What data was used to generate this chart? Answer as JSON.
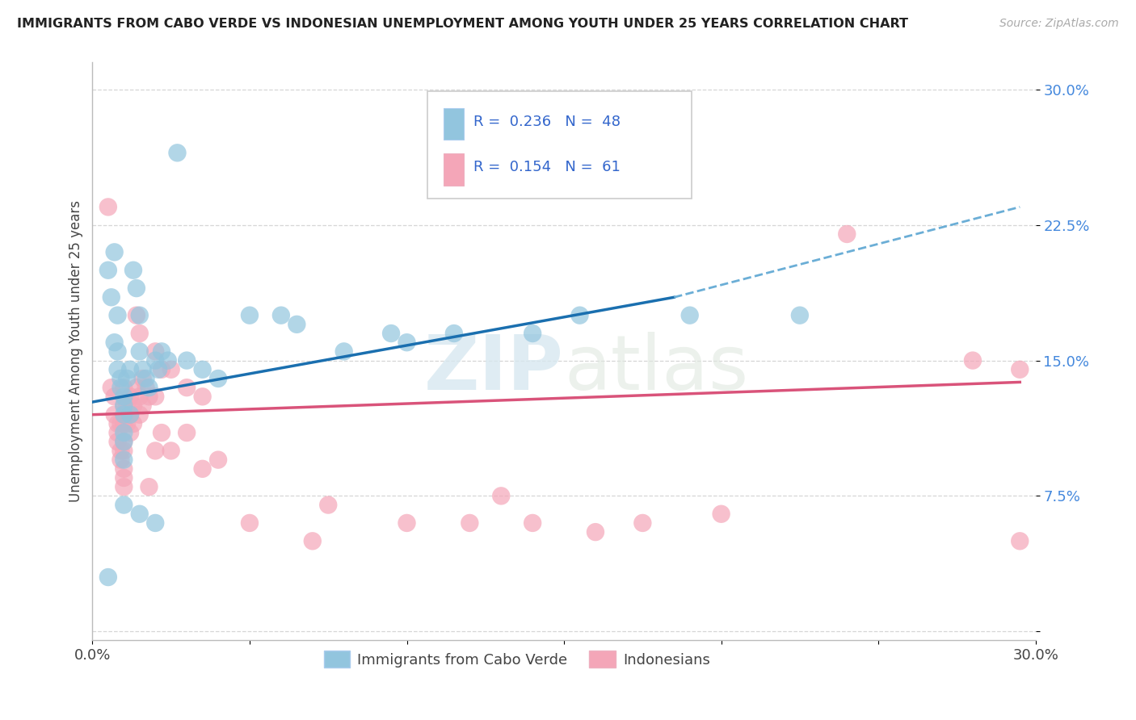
{
  "title": "IMMIGRANTS FROM CABO VERDE VS INDONESIAN UNEMPLOYMENT AMONG YOUTH UNDER 25 YEARS CORRELATION CHART",
  "source": "Source: ZipAtlas.com",
  "ylabel": "Unemployment Among Youth under 25 years",
  "xlim": [
    0.0,
    0.3
  ],
  "ylim": [
    -0.005,
    0.315
  ],
  "xticks": [
    0.0,
    0.05,
    0.1,
    0.15,
    0.2,
    0.25,
    0.3
  ],
  "xticklabels": [
    "0.0%",
    "",
    "",
    "",
    "",
    "",
    "30.0%"
  ],
  "ytick_positions": [
    0.0,
    0.075,
    0.15,
    0.225,
    0.3
  ],
  "yticklabels": [
    "",
    "7.5%",
    "15.0%",
    "22.5%",
    "30.0%"
  ],
  "legend1_label": "Immigrants from Cabo Verde",
  "legend2_label": "Indonesians",
  "R1": "0.236",
  "N1": "48",
  "R2": "0.154",
  "N2": "61",
  "blue_color": "#92c5de",
  "pink_color": "#f4a6b8",
  "blue_line_color": "#1a6faf",
  "pink_line_color": "#d9537a",
  "dashed_line_color": "#6baed6",
  "watermark_zip": "ZIP",
  "watermark_atlas": "atlas",
  "blue_scatter": [
    [
      0.005,
      0.2
    ],
    [
      0.006,
      0.185
    ],
    [
      0.007,
      0.16
    ],
    [
      0.007,
      0.21
    ],
    [
      0.008,
      0.175
    ],
    [
      0.008,
      0.155
    ],
    [
      0.008,
      0.145
    ],
    [
      0.009,
      0.14
    ],
    [
      0.009,
      0.135
    ],
    [
      0.01,
      0.13
    ],
    [
      0.01,
      0.125
    ],
    [
      0.01,
      0.12
    ],
    [
      0.01,
      0.11
    ],
    [
      0.01,
      0.105
    ],
    [
      0.01,
      0.095
    ],
    [
      0.011,
      0.14
    ],
    [
      0.012,
      0.145
    ],
    [
      0.012,
      0.12
    ],
    [
      0.013,
      0.2
    ],
    [
      0.014,
      0.19
    ],
    [
      0.015,
      0.175
    ],
    [
      0.015,
      0.155
    ],
    [
      0.016,
      0.145
    ],
    [
      0.017,
      0.14
    ],
    [
      0.018,
      0.135
    ],
    [
      0.02,
      0.15
    ],
    [
      0.021,
      0.145
    ],
    [
      0.022,
      0.155
    ],
    [
      0.024,
      0.15
    ],
    [
      0.027,
      0.265
    ],
    [
      0.03,
      0.15
    ],
    [
      0.035,
      0.145
    ],
    [
      0.04,
      0.14
    ],
    [
      0.05,
      0.175
    ],
    [
      0.06,
      0.175
    ],
    [
      0.065,
      0.17
    ],
    [
      0.08,
      0.155
    ],
    [
      0.095,
      0.165
    ],
    [
      0.1,
      0.16
    ],
    [
      0.115,
      0.165
    ],
    [
      0.14,
      0.165
    ],
    [
      0.155,
      0.175
    ],
    [
      0.19,
      0.175
    ],
    [
      0.225,
      0.175
    ],
    [
      0.005,
      0.03
    ],
    [
      0.01,
      0.07
    ],
    [
      0.015,
      0.065
    ],
    [
      0.02,
      0.06
    ]
  ],
  "pink_scatter": [
    [
      0.005,
      0.235
    ],
    [
      0.006,
      0.135
    ],
    [
      0.007,
      0.13
    ],
    [
      0.007,
      0.12
    ],
    [
      0.008,
      0.115
    ],
    [
      0.008,
      0.11
    ],
    [
      0.008,
      0.105
    ],
    [
      0.009,
      0.115
    ],
    [
      0.009,
      0.1
    ],
    [
      0.009,
      0.095
    ],
    [
      0.01,
      0.135
    ],
    [
      0.01,
      0.125
    ],
    [
      0.01,
      0.115
    ],
    [
      0.01,
      0.105
    ],
    [
      0.01,
      0.1
    ],
    [
      0.01,
      0.09
    ],
    [
      0.01,
      0.085
    ],
    [
      0.01,
      0.08
    ],
    [
      0.011,
      0.125
    ],
    [
      0.011,
      0.115
    ],
    [
      0.012,
      0.13
    ],
    [
      0.012,
      0.12
    ],
    [
      0.012,
      0.11
    ],
    [
      0.013,
      0.125
    ],
    [
      0.013,
      0.115
    ],
    [
      0.014,
      0.175
    ],
    [
      0.014,
      0.135
    ],
    [
      0.015,
      0.165
    ],
    [
      0.015,
      0.13
    ],
    [
      0.015,
      0.12
    ],
    [
      0.016,
      0.14
    ],
    [
      0.016,
      0.125
    ],
    [
      0.017,
      0.135
    ],
    [
      0.018,
      0.13
    ],
    [
      0.018,
      0.08
    ],
    [
      0.02,
      0.155
    ],
    [
      0.02,
      0.13
    ],
    [
      0.02,
      0.1
    ],
    [
      0.022,
      0.145
    ],
    [
      0.022,
      0.11
    ],
    [
      0.025,
      0.145
    ],
    [
      0.025,
      0.1
    ],
    [
      0.03,
      0.135
    ],
    [
      0.03,
      0.11
    ],
    [
      0.035,
      0.13
    ],
    [
      0.035,
      0.09
    ],
    [
      0.04,
      0.095
    ],
    [
      0.05,
      0.06
    ],
    [
      0.07,
      0.05
    ],
    [
      0.075,
      0.07
    ],
    [
      0.1,
      0.06
    ],
    [
      0.12,
      0.06
    ],
    [
      0.13,
      0.075
    ],
    [
      0.14,
      0.06
    ],
    [
      0.16,
      0.055
    ],
    [
      0.175,
      0.06
    ],
    [
      0.2,
      0.065
    ],
    [
      0.24,
      0.22
    ],
    [
      0.28,
      0.15
    ],
    [
      0.295,
      0.145
    ],
    [
      0.295,
      0.05
    ]
  ],
  "blue_line": {
    "x0": 0.0,
    "x1": 0.185,
    "y0": 0.127,
    "y1": 0.185
  },
  "blue_dashed_line": {
    "x0": 0.185,
    "x1": 0.295,
    "y0": 0.185,
    "y1": 0.235
  },
  "pink_line": {
    "x0": 0.0,
    "x1": 0.295,
    "y0": 0.12,
    "y1": 0.138
  }
}
